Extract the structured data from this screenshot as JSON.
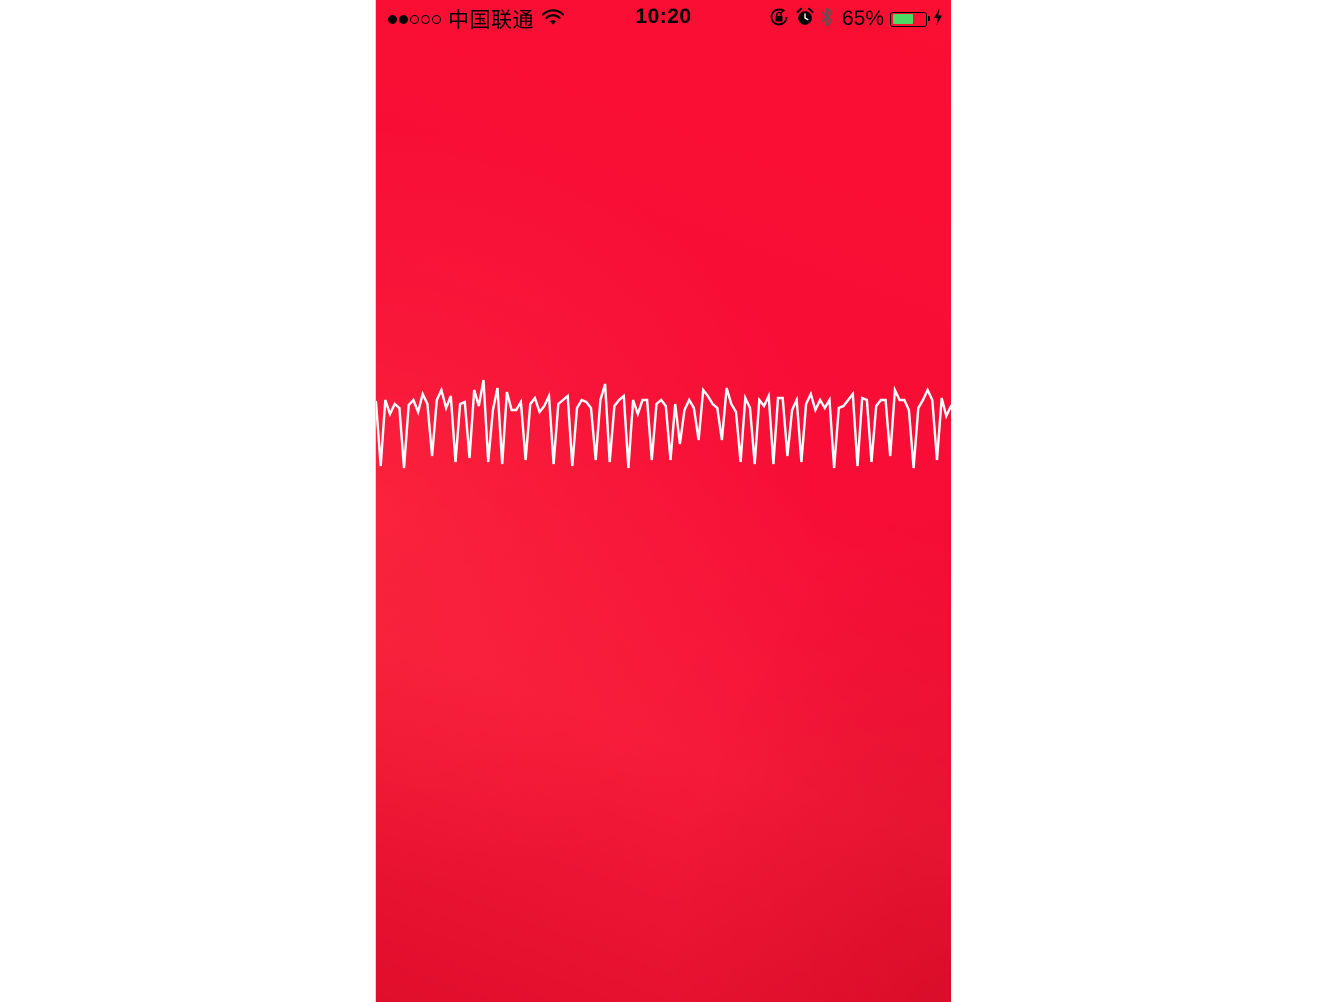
{
  "status_bar": {
    "signal_bars_total": 5,
    "signal_bars_filled": 2,
    "carrier": "中国联通",
    "time": "10:20",
    "battery_percent_label": "65%",
    "battery_level": 0.65,
    "icons": [
      "wifi-icon",
      "rotation-lock-icon",
      "alarm-icon",
      "bluetooth-icon",
      "battery-icon",
      "charging-icon"
    ],
    "battery_fill_color": "#4cd964"
  },
  "screen": {
    "background_color": "#f70d36",
    "waveform_color": "#ffffff"
  }
}
